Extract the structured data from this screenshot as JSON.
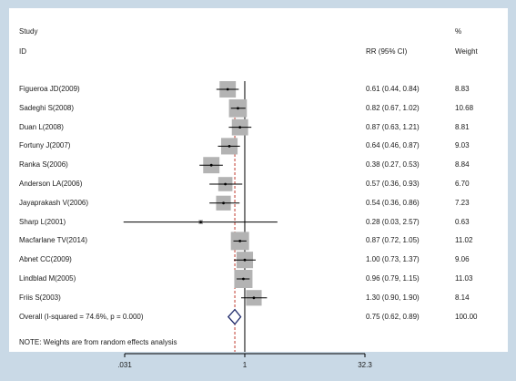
{
  "header": {
    "study": "Study",
    "id": "ID",
    "rr": "RR (95% CI)",
    "pct": "%",
    "weight": "Weight"
  },
  "note": "NOTE: Weights are from random effects analysis",
  "chart_data": {
    "type": "forest",
    "scale": "log",
    "xlim": [
      0.031,
      32.3
    ],
    "xticks": [
      {
        "value": 0.031,
        "label": ".031"
      },
      {
        "value": 1,
        "label": "1"
      },
      {
        "value": 32.3,
        "label": "32.3"
      }
    ],
    "overall_estimate_line": 0.75,
    "studies": [
      {
        "id": "Figueroa JD(2009)",
        "rr": 0.61,
        "lo": 0.44,
        "hi": 0.84,
        "ci_text": "0.61 (0.44, 0.84)",
        "weight": 8.83,
        "weight_text": "8.83"
      },
      {
        "id": "Sadeghi S(2008)",
        "rr": 0.82,
        "lo": 0.67,
        "hi": 1.02,
        "ci_text": "0.82 (0.67, 1.02)",
        "weight": 10.68,
        "weight_text": "10.68"
      },
      {
        "id": "Duan L(2008)",
        "rr": 0.87,
        "lo": 0.63,
        "hi": 1.21,
        "ci_text": "0.87 (0.63, 1.21)",
        "weight": 8.81,
        "weight_text": "8.81"
      },
      {
        "id": "Fortuny J(2007)",
        "rr": 0.64,
        "lo": 0.46,
        "hi": 0.87,
        "ci_text": "0.64 (0.46, 0.87)",
        "weight": 9.03,
        "weight_text": "9.03"
      },
      {
        "id": "Ranka S(2006)",
        "rr": 0.38,
        "lo": 0.27,
        "hi": 0.53,
        "ci_text": "0.38 (0.27, 0.53)",
        "weight": 8.84,
        "weight_text": "8.84"
      },
      {
        "id": "Anderson LA(2006)",
        "rr": 0.57,
        "lo": 0.36,
        "hi": 0.93,
        "ci_text": "0.57 (0.36, 0.93)",
        "weight": 6.7,
        "weight_text": "6.70"
      },
      {
        "id": "Jayaprakash V(2006)",
        "rr": 0.54,
        "lo": 0.36,
        "hi": 0.86,
        "ci_text": "0.54 (0.36, 0.86)",
        "weight": 7.23,
        "weight_text": "7.23"
      },
      {
        "id": "Sharp L(2001)",
        "rr": 0.28,
        "lo": 0.03,
        "hi": 2.57,
        "ci_text": "0.28 (0.03, 2.57)",
        "weight": 0.63,
        "weight_text": "0.63"
      },
      {
        "id": "Macfarlane TV(2014)",
        "rr": 0.87,
        "lo": 0.72,
        "hi": 1.05,
        "ci_text": "0.87 (0.72, 1.05)",
        "weight": 11.02,
        "weight_text": "11.02"
      },
      {
        "id": "Abnet CC(2009)",
        "rr": 1.0,
        "lo": 0.73,
        "hi": 1.37,
        "ci_text": "1.00 (0.73, 1.37)",
        "weight": 9.06,
        "weight_text": "9.06"
      },
      {
        "id": "Lindblad M(2005)",
        "rr": 0.96,
        "lo": 0.79,
        "hi": 1.15,
        "ci_text": "0.96 (0.79, 1.15)",
        "weight": 11.03,
        "weight_text": "11.03"
      },
      {
        "id": "Friis S(2003)",
        "rr": 1.3,
        "lo": 0.9,
        "hi": 1.9,
        "ci_text": "1.30 (0.90, 1.90)",
        "weight": 8.14,
        "weight_text": "8.14"
      }
    ],
    "overall": {
      "id": "Overall  (I-squared = 74.6%, p = 0.000)",
      "rr": 0.75,
      "lo": 0.62,
      "hi": 0.89,
      "ci_text": "0.75 (0.62, 0.89)",
      "weight_text": "100.00"
    },
    "colors": {
      "box": "#b3b3b3",
      "ci_line": "#000000",
      "null_line": "#000000",
      "overall_line": "#c0392b",
      "diamond": "#1f2a6b",
      "panel_bg": "#ffffff",
      "outer_bg": "#c9d9e6"
    }
  }
}
